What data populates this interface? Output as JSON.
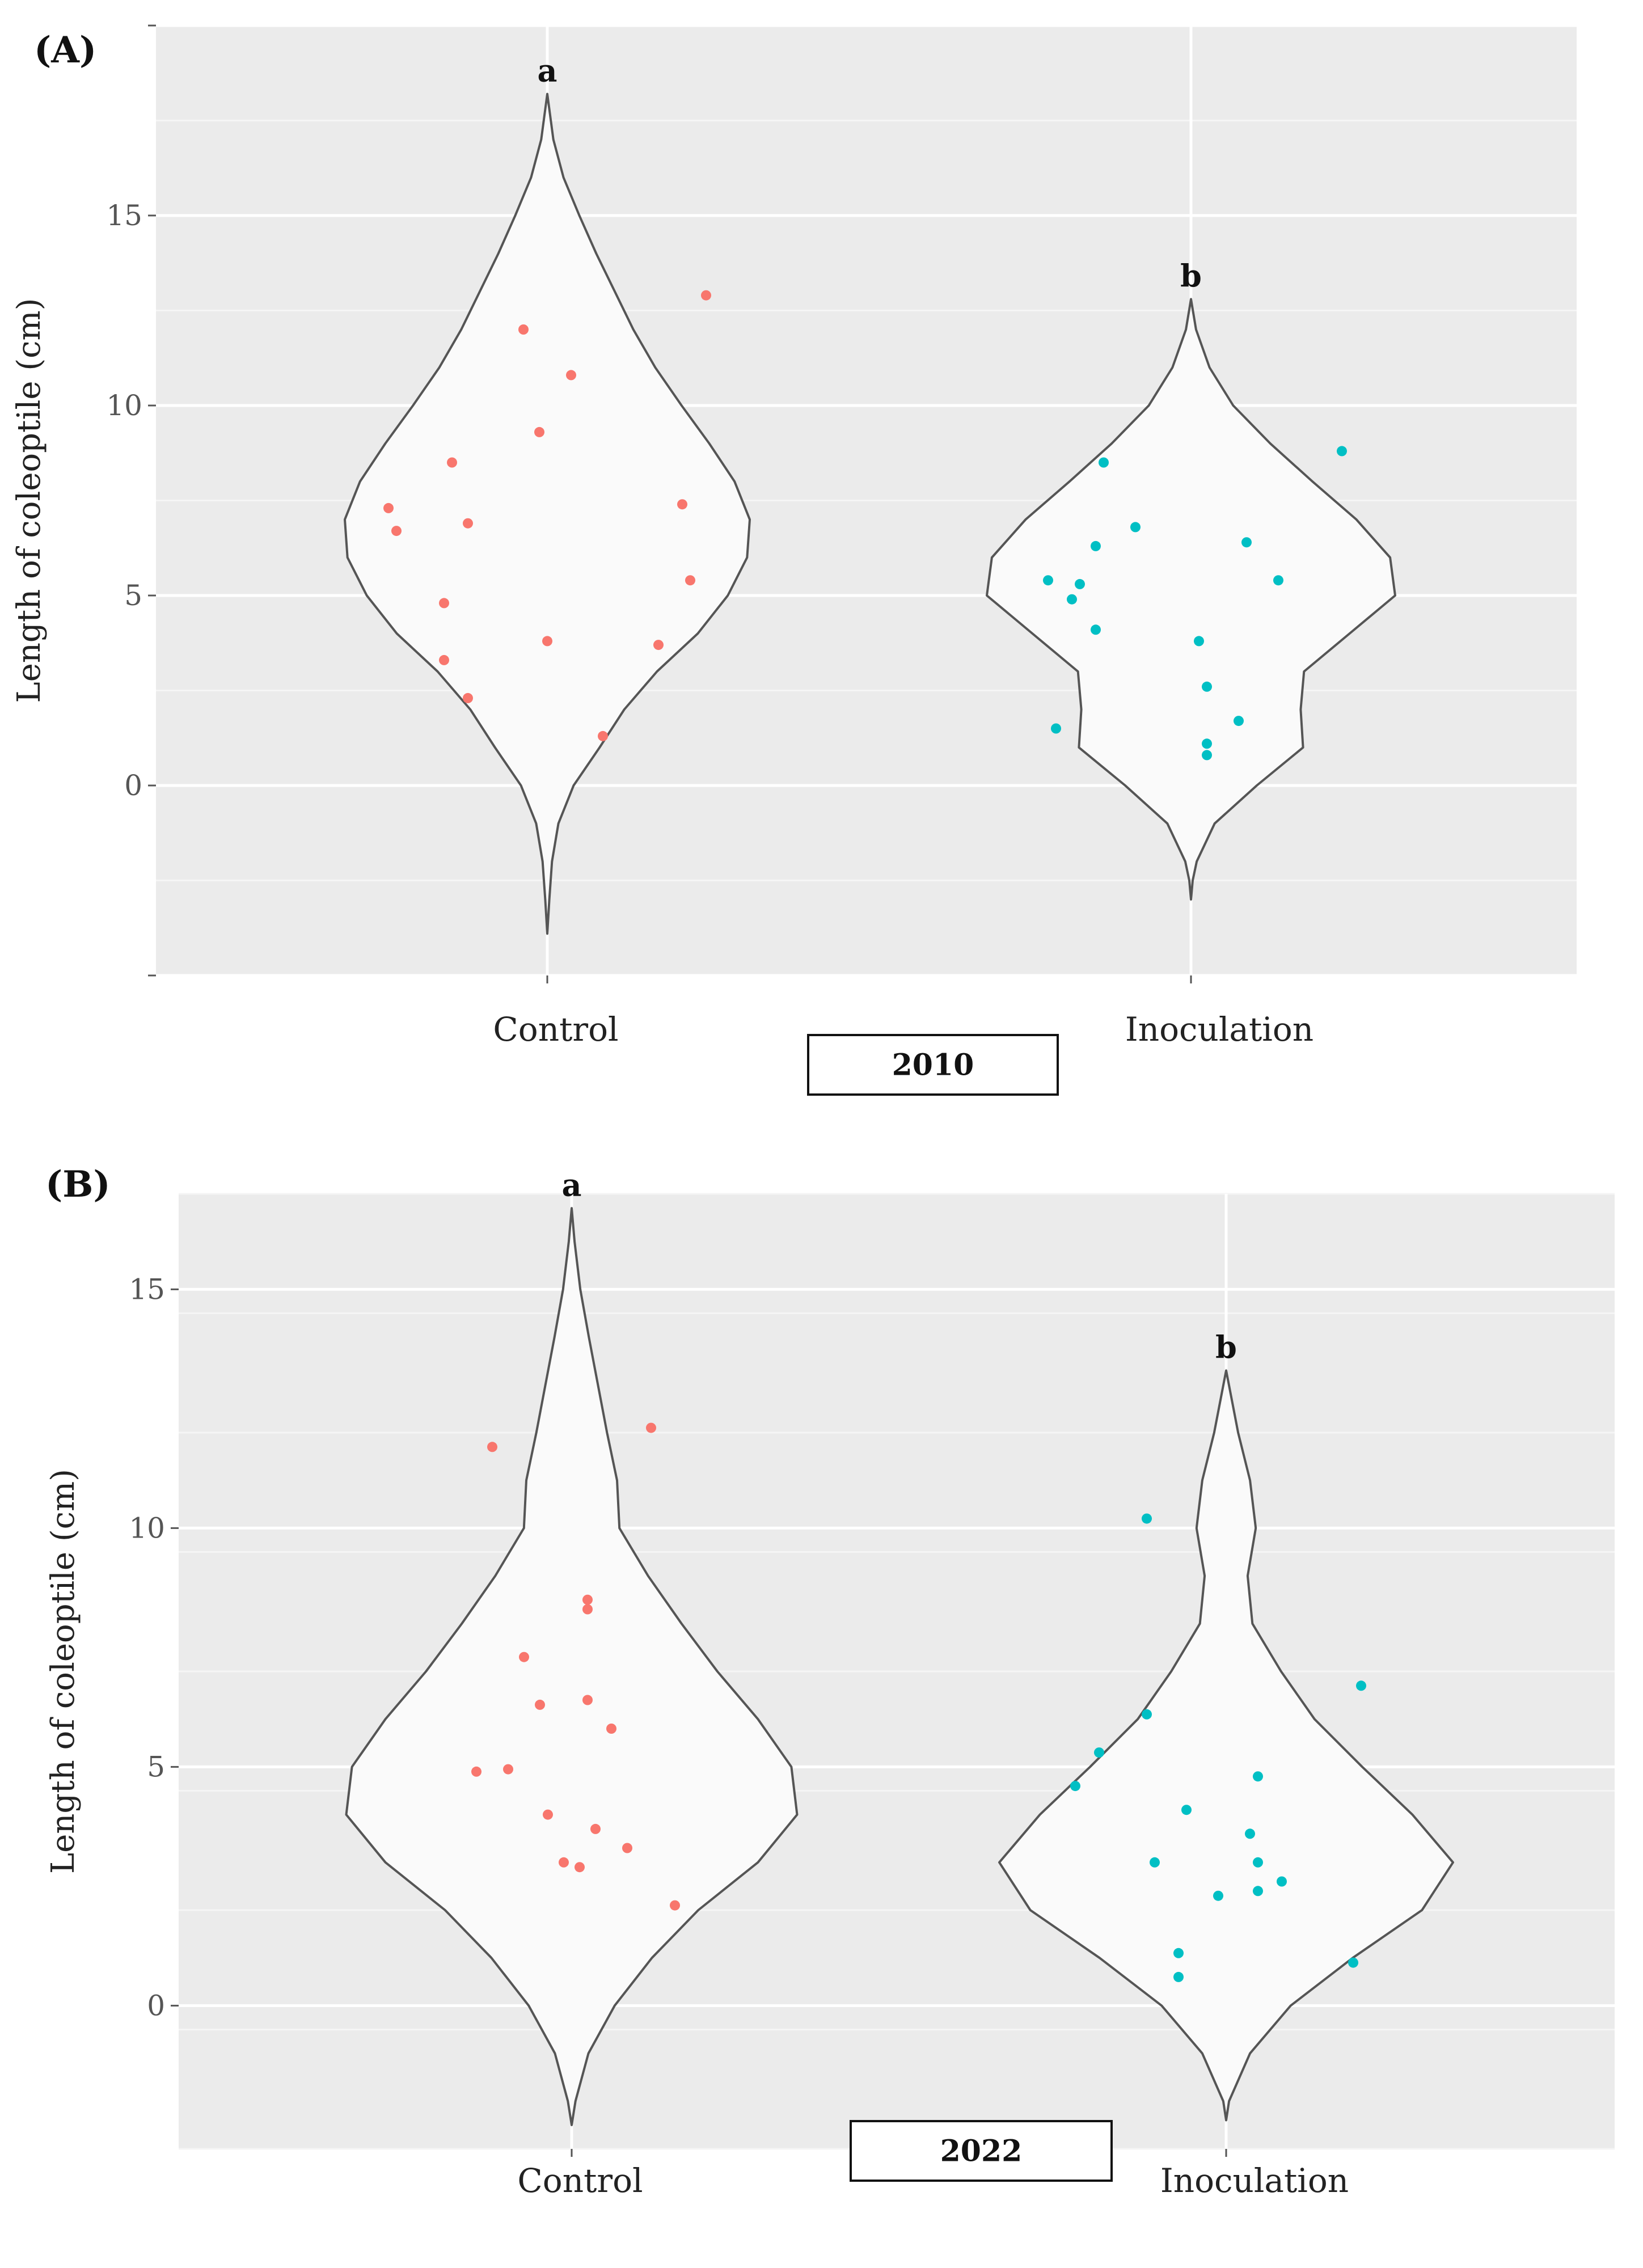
{
  "chart_data": [
    {
      "type": "violin",
      "panel_label": "(A)",
      "ylabel": "Length of coleoptile (cm)",
      "yticks": [
        0,
        5,
        10,
        15
      ],
      "ylim": [
        -5,
        20
      ],
      "categories": [
        "Control",
        "Inoculation"
      ],
      "year_label": "2010",
      "grid": true,
      "groups": [
        {
          "name": "Control",
          "letter": "a",
          "color": "#F8766D",
          "violin_range": [
            -3.9,
            18.2
          ],
          "density": [
            [
              -3.9,
              0.0
            ],
            [
              -3.0,
              0.06
            ],
            [
              -2.0,
              0.14
            ],
            [
              -1.0,
              0.33
            ],
            [
              0.0,
              0.78
            ],
            [
              1.0,
              1.55
            ],
            [
              2.0,
              2.28
            ],
            [
              3.0,
              3.25
            ],
            [
              4.0,
              4.46
            ],
            [
              5.0,
              5.35
            ],
            [
              6.0,
              5.92
            ],
            [
              7.0,
              6.0
            ],
            [
              8.0,
              5.55
            ],
            [
              9.0,
              4.8
            ],
            [
              10.0,
              3.98
            ],
            [
              11.0,
              3.2
            ],
            [
              12.0,
              2.55
            ],
            [
              13.0,
              2.0
            ],
            [
              14.0,
              1.45
            ],
            [
              15.0,
              0.95
            ],
            [
              16.0,
              0.48
            ],
            [
              17.0,
              0.18
            ],
            [
              18.2,
              0.0
            ]
          ],
          "points": [
            {
              "x": -0.2,
              "y": 7.3
            },
            {
              "x": -0.19,
              "y": 6.7
            },
            {
              "x": -0.12,
              "y": 8.5
            },
            {
              "x": -0.13,
              "y": 4.8
            },
            {
              "x": -0.13,
              "y": 3.3
            },
            {
              "x": -0.1,
              "y": 6.9
            },
            {
              "x": -0.1,
              "y": 2.3
            },
            {
              "x": -0.03,
              "y": 12.0
            },
            {
              "x": -0.01,
              "y": 9.3
            },
            {
              "x": 0.0,
              "y": 3.8
            },
            {
              "x": 0.03,
              "y": 10.8
            },
            {
              "x": 0.07,
              "y": 1.3
            },
            {
              "x": 0.14,
              "y": 3.7
            },
            {
              "x": 0.17,
              "y": 7.4
            },
            {
              "x": 0.18,
              "y": 5.4
            },
            {
              "x": 0.2,
              "y": 12.9
            }
          ]
        },
        {
          "name": "Inoculation",
          "letter": "b",
          "color": "#00BFC4",
          "violin_range": [
            -3.0,
            12.8
          ],
          "density": [
            [
              -3.0,
              0.0
            ],
            [
              -2.5,
              0.05
            ],
            [
              -2.0,
              0.17
            ],
            [
              -1.0,
              0.7
            ],
            [
              0.0,
              1.95
            ],
            [
              1.0,
              3.32
            ],
            [
              2.0,
              3.25
            ],
            [
              3.0,
              3.35
            ],
            [
              4.0,
              4.7
            ],
            [
              5.0,
              6.05
            ],
            [
              6.0,
              5.9
            ],
            [
              7.0,
              4.9
            ],
            [
              8.0,
              3.6
            ],
            [
              9.0,
              2.35
            ],
            [
              10.0,
              1.25
            ],
            [
              11.0,
              0.55
            ],
            [
              12.0,
              0.15
            ],
            [
              12.8,
              0.0
            ]
          ],
          "points": [
            {
              "x": -0.18,
              "y": 5.4
            },
            {
              "x": -0.15,
              "y": 4.9
            },
            {
              "x": -0.14,
              "y": 5.3
            },
            {
              "x": -0.12,
              "y": 4.1
            },
            {
              "x": -0.12,
              "y": 6.3
            },
            {
              "x": -0.11,
              "y": 8.5
            },
            {
              "x": -0.07,
              "y": 6.8
            },
            {
              "x": -0.17,
              "y": 1.5
            },
            {
              "x": 0.01,
              "y": 3.8
            },
            {
              "x": 0.02,
              "y": 2.6
            },
            {
              "x": 0.02,
              "y": 1.1
            },
            {
              "x": 0.02,
              "y": 0.8
            },
            {
              "x": 0.06,
              "y": 1.7
            },
            {
              "x": 0.07,
              "y": 6.4
            },
            {
              "x": 0.11,
              "y": 5.4
            },
            {
              "x": 0.19,
              "y": 8.8
            }
          ]
        }
      ]
    },
    {
      "type": "violin",
      "panel_label": "(B)",
      "ylabel": "Length of coleoptile (cm)",
      "yticks": [
        0,
        5,
        10,
        15
      ],
      "ylim": [
        -3,
        17
      ],
      "categories": [
        "Control",
        "Inoculation"
      ],
      "year_label": "2022",
      "grid": true,
      "groups": [
        {
          "name": "Control",
          "letter": "a",
          "color": "#F8766D",
          "violin_range": [
            -2.5,
            16.7
          ],
          "density": [
            [
              -2.5,
              0.0
            ],
            [
              -2.0,
              0.08
            ],
            [
              -1.0,
              0.35
            ],
            [
              0.0,
              0.9
            ],
            [
              1.0,
              1.68
            ],
            [
              2.0,
              2.65
            ],
            [
              3.0,
              3.9
            ],
            [
              4.0,
              4.72
            ],
            [
              5.0,
              4.6
            ],
            [
              6.0,
              3.9
            ],
            [
              7.0,
              3.05
            ],
            [
              8.0,
              2.3
            ],
            [
              9.0,
              1.6
            ],
            [
              10.0,
              1.0
            ],
            [
              11.0,
              0.95
            ],
            [
              12.0,
              0.74
            ],
            [
              13.0,
              0.55
            ],
            [
              14.0,
              0.36
            ],
            [
              15.0,
              0.18
            ],
            [
              16.0,
              0.06
            ],
            [
              16.7,
              0.0
            ]
          ],
          "points": [
            {
              "x": -0.1,
              "y": 11.7
            },
            {
              "x": 0.1,
              "y": 12.1
            },
            {
              "x": 0.02,
              "y": 8.5
            },
            {
              "x": 0.02,
              "y": 8.3
            },
            {
              "x": -0.06,
              "y": 7.3
            },
            {
              "x": -0.04,
              "y": 6.3
            },
            {
              "x": 0.02,
              "y": 6.4
            },
            {
              "x": 0.05,
              "y": 5.8
            },
            {
              "x": -0.12,
              "y": 4.9
            },
            {
              "x": -0.08,
              "y": 4.95
            },
            {
              "x": -0.03,
              "y": 4.0
            },
            {
              "x": 0.03,
              "y": 3.7
            },
            {
              "x": 0.07,
              "y": 3.3
            },
            {
              "x": -0.01,
              "y": 3.0
            },
            {
              "x": 0.01,
              "y": 2.9
            },
            {
              "x": 0.13,
              "y": 2.1
            }
          ]
        },
        {
          "name": "Inoculation",
          "letter": "b",
          "color": "#00BFC4",
          "violin_range": [
            -2.4,
            13.3
          ],
          "density": [
            [
              -2.4,
              0.0
            ],
            [
              -2.0,
              0.06
            ],
            [
              -1.0,
              0.5
            ],
            [
              0.0,
              1.35
            ],
            [
              1.0,
              2.65
            ],
            [
              2.0,
              4.1
            ],
            [
              3.0,
              4.75
            ],
            [
              4.0,
              3.9
            ],
            [
              5.0,
              2.85
            ],
            [
              6.0,
              1.85
            ],
            [
              7.0,
              1.15
            ],
            [
              8.0,
              0.55
            ],
            [
              9.0,
              0.45
            ],
            [
              10.0,
              0.62
            ],
            [
              11.0,
              0.5
            ],
            [
              12.0,
              0.25
            ],
            [
              13.3,
              0.0
            ]
          ],
          "points": [
            {
              "x": -0.1,
              "y": 10.2
            },
            {
              "x": 0.17,
              "y": 6.7
            },
            {
              "x": -0.1,
              "y": 6.1
            },
            {
              "x": -0.16,
              "y": 5.3
            },
            {
              "x": -0.19,
              "y": 4.6
            },
            {
              "x": 0.04,
              "y": 4.8
            },
            {
              "x": -0.05,
              "y": 4.1
            },
            {
              "x": 0.03,
              "y": 3.6
            },
            {
              "x": 0.04,
              "y": 3.0
            },
            {
              "x": -0.09,
              "y": 3.0
            },
            {
              "x": 0.07,
              "y": 2.6
            },
            {
              "x": 0.04,
              "y": 2.4
            },
            {
              "x": -0.01,
              "y": 2.3
            },
            {
              "x": -0.06,
              "y": 1.1
            },
            {
              "x": -0.06,
              "y": 0.6
            },
            {
              "x": 0.16,
              "y": 0.9
            }
          ]
        }
      ]
    }
  ]
}
